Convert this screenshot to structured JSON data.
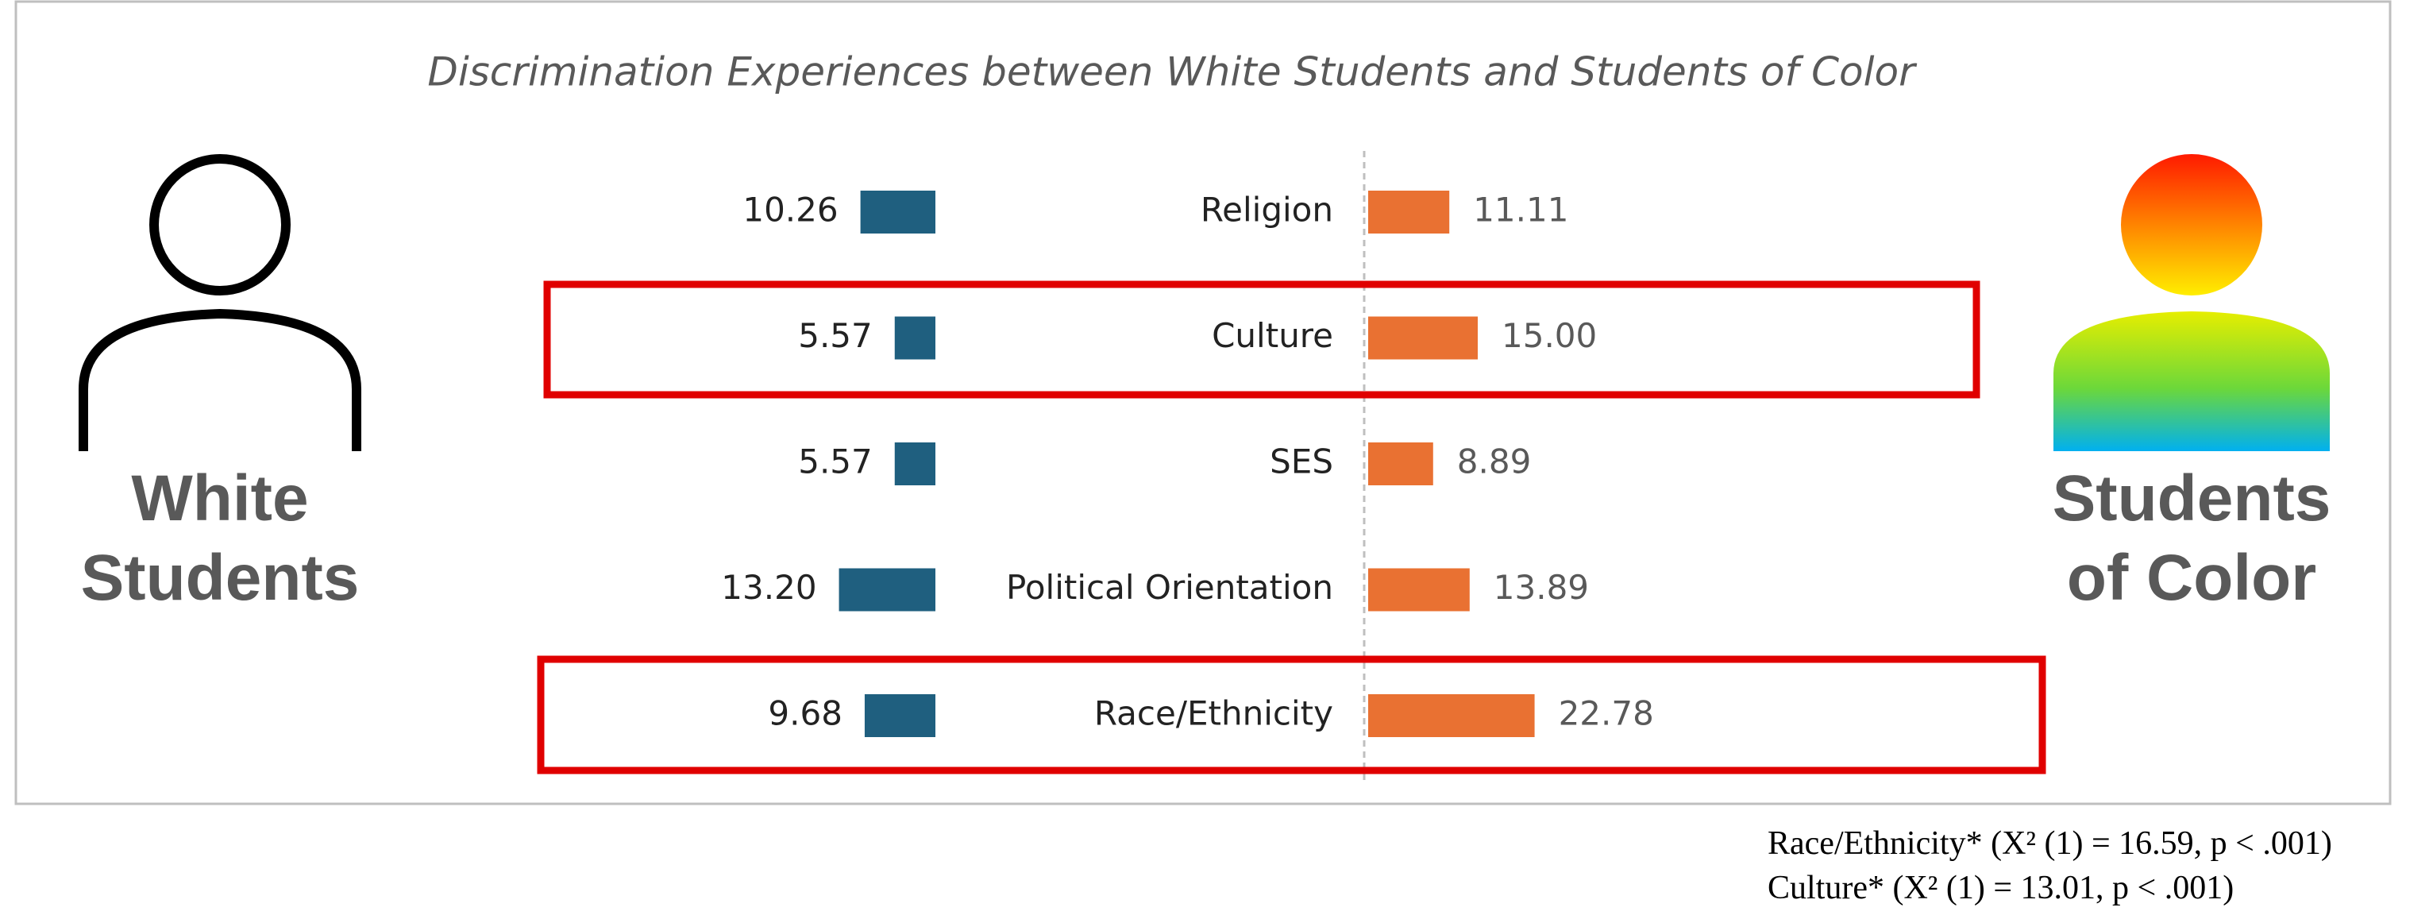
{
  "chart_data": {
    "type": "butterfly-bar",
    "title": "Discrimination Experiences between White Students and Students of Color",
    "categories": [
      "Religion",
      "Culture",
      "SES",
      "Political Orientation",
      "Race/Ethnicity"
    ],
    "series": [
      {
        "name": "White Students",
        "color": "#1f5f7f",
        "values": [
          10.26,
          5.57,
          5.57,
          13.2,
          9.68
        ],
        "value_labels": [
          "10.26",
          "5.57",
          "5.57",
          "13.20",
          "9.68"
        ]
      },
      {
        "name": "Students of Color",
        "color": "#e97132",
        "values": [
          11.11,
          15,
          8.89,
          13.89,
          22.78
        ],
        "value_labels": [
          "11.11",
          "15.00",
          "8.89",
          "13.89",
          "22.78"
        ]
      }
    ],
    "annotations": [
      "Race/Ethnicity* (X² (1) = 16.59, p < .001)",
      "Culture* (X² (1) = 13.01, p < .001)"
    ]
  }
}
